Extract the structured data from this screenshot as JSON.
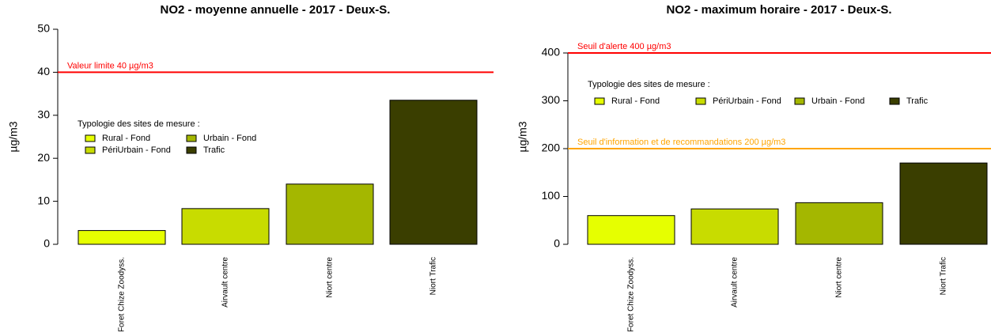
{
  "chart_data": [
    {
      "type": "bar",
      "title": "NO2 - moyenne annuelle - 2017 - Deux-S.",
      "y_label": "µg/m3",
      "categories": [
        "Foret Chize Zoodyss.",
        "Airvault centre",
        "Niort centre",
        "Niort Trafic"
      ],
      "values": [
        3.2,
        8.3,
        14,
        33.5
      ],
      "colors": [
        "#e6ff00",
        "#c8dc00",
        "#a4b700",
        "#3a3e00"
      ],
      "ylim": [
        0,
        50
      ],
      "yticks": [
        0,
        10,
        20,
        30,
        40,
        50
      ],
      "reference_lines": [
        {
          "value": 40,
          "label": "Valeur limite 40 µg/m3",
          "color": "#ff0000"
        }
      ],
      "legend": {
        "title": "Typologie des sites de mesure :",
        "entries": [
          "Rural - Fond",
          "PériUrbain - Fond",
          "Urbain - Fond",
          "Trafic"
        ]
      }
    },
    {
      "type": "bar",
      "title": "NO2 - maximum horaire - 2017 - Deux-S.",
      "y_label": "µg/m3",
      "categories": [
        "Foret Chize Zoodyss.",
        "Airvault centre",
        "Niort centre",
        "Niort Trafic"
      ],
      "values": [
        60,
        74,
        87,
        170
      ],
      "colors": [
        "#e6ff00",
        "#c8dc00",
        "#a4b700",
        "#3a3e00"
      ],
      "ylim": [
        0,
        400
      ],
      "yticks": [
        0,
        100,
        200,
        300,
        400
      ],
      "reference_lines": [
        {
          "value": 400,
          "label": "Seuil d'alerte 400 µg/m3",
          "color": "#ff0000"
        },
        {
          "value": 200,
          "label": "Seuil d'information et de recommandations 200 µg/m3",
          "color": "#ffa500"
        }
      ],
      "legend": {
        "title": "Typologie des sites de mesure :",
        "entries": [
          "Rural - Fond",
          "PériUrbain - Fond",
          "Urbain - Fond",
          "Trafic"
        ]
      }
    }
  ]
}
